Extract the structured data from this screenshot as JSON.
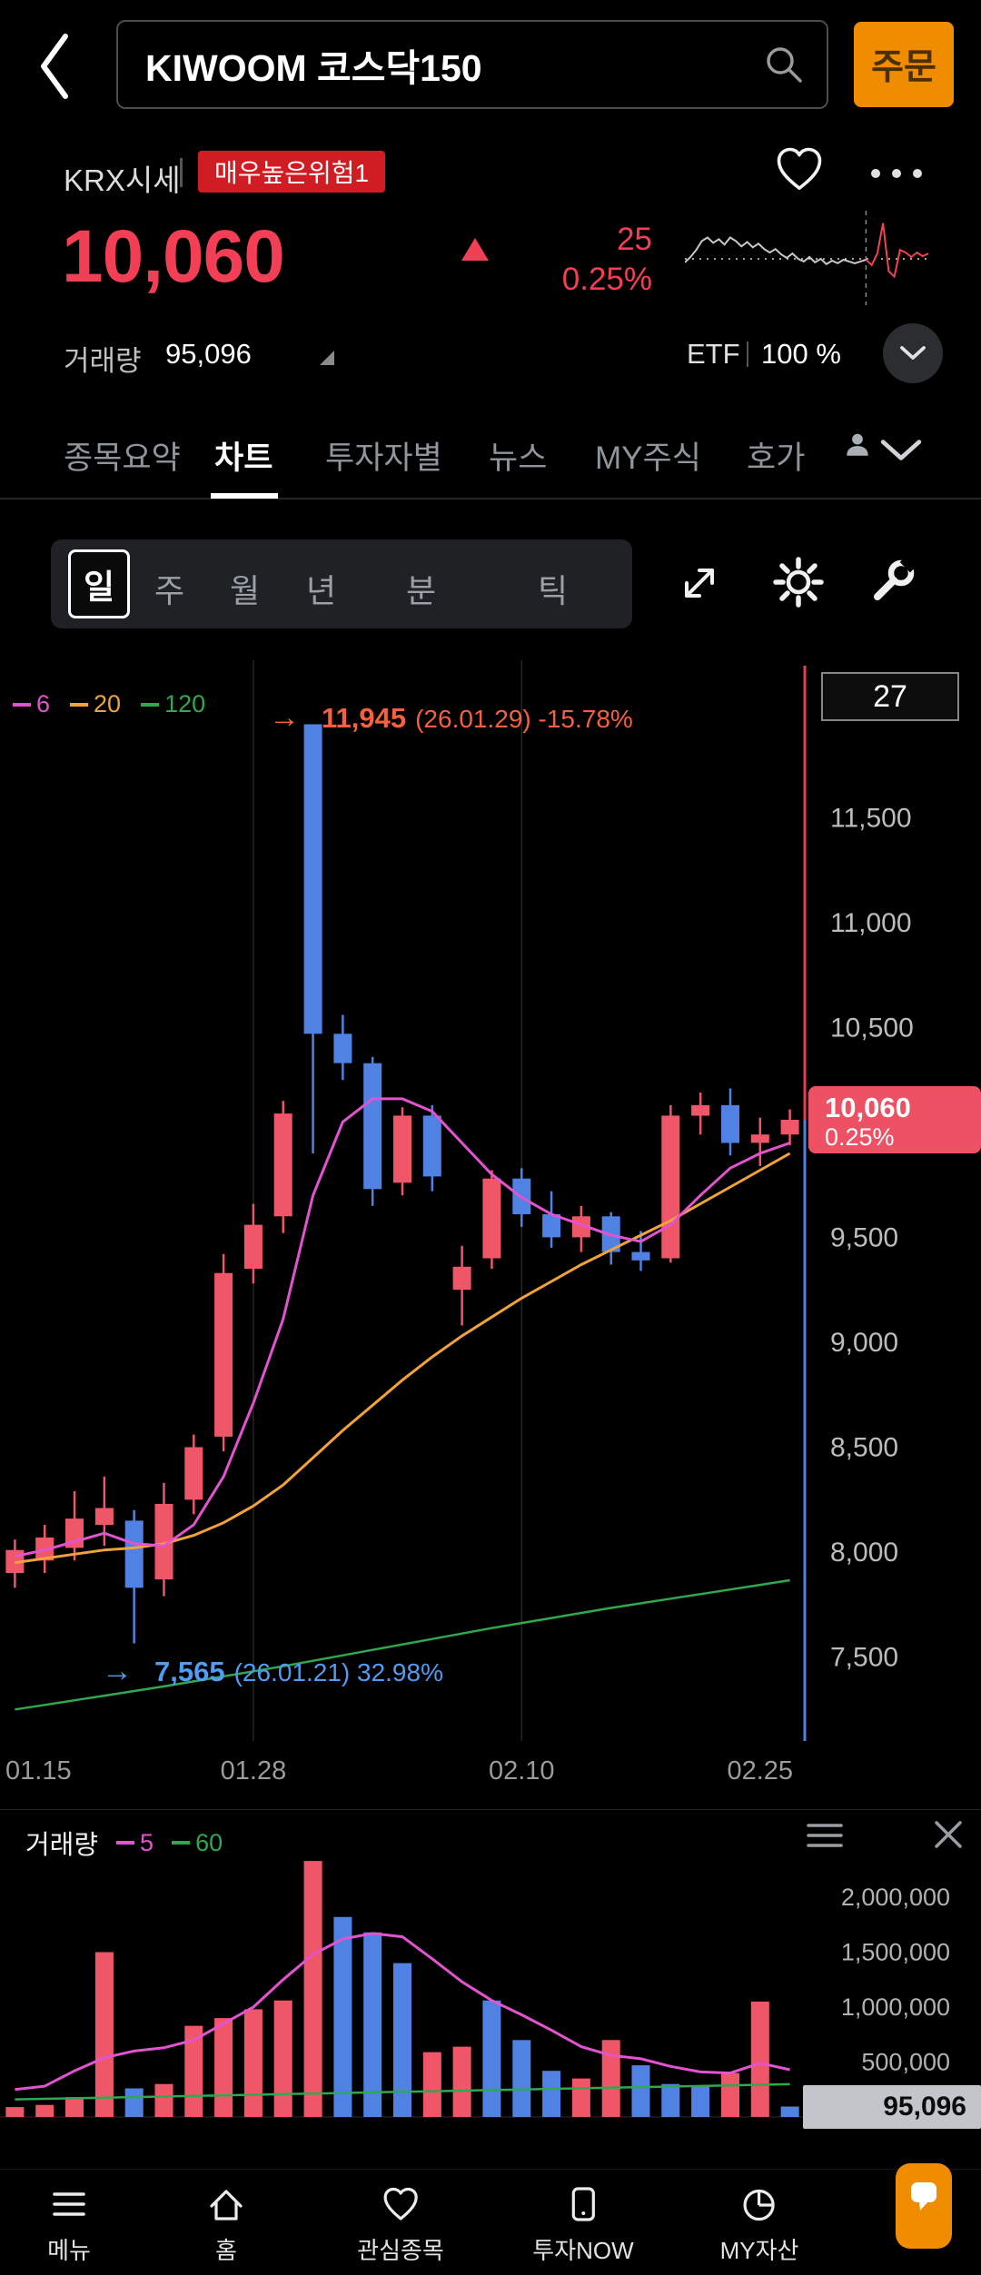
{
  "header": {
    "title": "KIWOOM 코스닥150",
    "order_button": "주문",
    "market_label": "KRX시세",
    "risk_badge": "매우높은위험1",
    "price": "10,060",
    "change": "25",
    "change_pct": "0.25%",
    "volume_label": "거래량",
    "volume_value": "95,096",
    "etf_label": "ETF",
    "etf_pct": "100 %"
  },
  "tabs": {
    "items": [
      {
        "label": "종목요약"
      },
      {
        "label": "차트"
      },
      {
        "label": "투자자별"
      },
      {
        "label": "뉴스"
      },
      {
        "label": "MY주식"
      },
      {
        "label": "호가"
      }
    ],
    "active": "차트"
  },
  "timeframe": {
    "selected": "일",
    "options": [
      "주",
      "월",
      "년",
      "분",
      "틱"
    ]
  },
  "legend": {
    "items": [
      {
        "label": "6"
      },
      {
        "label": "20"
      },
      {
        "label": "120"
      }
    ]
  },
  "chart_info": {
    "bar_count": "27"
  },
  "annotations": {
    "max": {
      "arrow": "→",
      "value": "11,945",
      "detail": "(26.01.29) -15.78%"
    },
    "min": {
      "arrow": "→",
      "value": "7,565",
      "detail": "(26.01.21) 32.98%"
    }
  },
  "price_tag": {
    "price": "10,060",
    "pct": "0.25%"
  },
  "volume_panel": {
    "title": "거래량",
    "ma_items": [
      {
        "label": "5"
      },
      {
        "label": "60"
      }
    ],
    "current": "95,096"
  },
  "bottom_nav": {
    "items": [
      {
        "label": "메뉴"
      },
      {
        "label": "홈"
      },
      {
        "label": "관심종목"
      },
      {
        "label": "투자NOW"
      },
      {
        "label": "MY자산"
      }
    ]
  },
  "chart_data": {
    "type": "candlestick",
    "current_price": 10060,
    "price_axis": {
      "min": 7100,
      "max": 12250,
      "ticks": [
        11500,
        11000,
        10500,
        9500,
        9000,
        8500,
        8000,
        7500
      ]
    },
    "x_labels": [
      {
        "label": "01.15",
        "index": 0,
        "grid": false
      },
      {
        "label": "01.28",
        "index": 8,
        "grid": true
      },
      {
        "label": "02.10",
        "index": 17,
        "grid": true
      },
      {
        "label": "02.25",
        "index": 25,
        "grid": false
      }
    ],
    "candles": [
      [
        7900,
        8060,
        7830,
        8010
      ],
      [
        7960,
        8130,
        7900,
        8070
      ],
      [
        8020,
        8290,
        7960,
        8160
      ],
      [
        8130,
        8360,
        8030,
        8210
      ],
      [
        8150,
        8200,
        7565,
        7830
      ],
      [
        7870,
        8330,
        7790,
        8230
      ],
      [
        8250,
        8560,
        8180,
        8500
      ],
      [
        8550,
        9420,
        8480,
        9330
      ],
      [
        9350,
        9660,
        9280,
        9560
      ],
      [
        9600,
        10150,
        9520,
        10090
      ],
      [
        11945,
        11945,
        9900,
        10470
      ],
      [
        10470,
        10560,
        10250,
        10330
      ],
      [
        10330,
        10360,
        9650,
        9730
      ],
      [
        9760,
        10120,
        9700,
        10080
      ],
      [
        10080,
        10130,
        9720,
        9790
      ],
      [
        9250,
        9460,
        9080,
        9360
      ],
      [
        9400,
        9820,
        9350,
        9780
      ],
      [
        9780,
        9830,
        9550,
        9610
      ],
      [
        9610,
        9720,
        9450,
        9500
      ],
      [
        9500,
        9650,
        9430,
        9600
      ],
      [
        9600,
        9620,
        9370,
        9430
      ],
      [
        9430,
        9530,
        9340,
        9390
      ],
      [
        9400,
        10130,
        9380,
        10080
      ],
      [
        10080,
        10190,
        9990,
        10130
      ],
      [
        10130,
        10210,
        9890,
        9950
      ],
      [
        9950,
        10070,
        9840,
        9990
      ],
      [
        9990,
        10110,
        9940,
        10060
      ]
    ],
    "ma": {
      "ma6": [
        7980,
        8010,
        8050,
        8090,
        8040,
        8030,
        8130,
        8360,
        8710,
        9110,
        9700,
        10050,
        10160,
        10160,
        10100,
        9950,
        9800,
        9690,
        9610,
        9560,
        9510,
        9480,
        9560,
        9700,
        9830,
        9900,
        9950
      ],
      "ma20": [
        7950,
        7970,
        7990,
        8010,
        8020,
        8040,
        8080,
        8140,
        8220,
        8320,
        8450,
        8580,
        8700,
        8820,
        8930,
        9030,
        9120,
        9210,
        9290,
        9370,
        9440,
        9510,
        9580,
        9660,
        9740,
        9820,
        9900
      ],
      "ma120": [
        7250,
        7272,
        7294,
        7316,
        7338,
        7360,
        7384,
        7408,
        7432,
        7456,
        7482,
        7508,
        7534,
        7560,
        7586,
        7612,
        7638,
        7662,
        7686,
        7710,
        7734,
        7756,
        7778,
        7800,
        7822,
        7844,
        7866
      ]
    },
    "volume": {
      "values": [
        90000,
        110000,
        180000,
        1500000,
        260000,
        300000,
        830000,
        900000,
        980000,
        1060000,
        2330000,
        1820000,
        1680000,
        1400000,
        590000,
        640000,
        1060000,
        700000,
        420000,
        350000,
        700000,
        470000,
        300000,
        280000,
        400000,
        1050000,
        95096
      ],
      "colors": [
        "up",
        "up",
        "up",
        "up",
        "down",
        "up",
        "up",
        "up",
        "up",
        "up",
        "up",
        "down",
        "down",
        "down",
        "up",
        "up",
        "down",
        "down",
        "down",
        "up",
        "up",
        "down",
        "down",
        "down",
        "up",
        "up",
        "down"
      ],
      "ma5": [
        250000,
        280000,
        420000,
        540000,
        600000,
        630000,
        700000,
        850000,
        1000000,
        1250000,
        1480000,
        1620000,
        1670000,
        1640000,
        1440000,
        1230000,
        1060000,
        930000,
        790000,
        640000,
        560000,
        530000,
        460000,
        410000,
        400000,
        490000,
        430000
      ],
      "ma60": [
        160000,
        165000,
        170000,
        176000,
        181000,
        186000,
        192000,
        197000,
        202000,
        208000,
        213000,
        218000,
        224000,
        229000,
        234000,
        240000,
        245000,
        250000,
        256000,
        261000,
        266000,
        272000,
        277000,
        282000,
        288000,
        293000,
        298000
      ],
      "ticks": [
        2000000,
        1500000,
        1000000,
        500000
      ],
      "current": 95096
    },
    "sparkline": {
      "values": [
        46,
        52,
        60,
        70,
        74,
        68,
        72,
        66,
        74,
        70,
        64,
        69,
        63,
        67,
        61,
        57,
        61,
        55,
        51,
        56,
        50,
        47,
        52,
        46,
        50,
        44,
        48,
        45,
        49,
        47,
        45,
        47,
        49,
        43,
        56,
        90,
        36,
        30,
        60,
        57,
        52,
        57,
        53,
        56
      ],
      "split_index": 32,
      "baseline": 50
    },
    "colors": {
      "up": "#ef5668",
      "down": "#4f82e3",
      "ma6": "#e254cf",
      "ma20": "#f2a23a",
      "ma120": "#2fa84f",
      "grid": "#262626",
      "edge_red": "#e83c50",
      "edge_blue": "#4f82e3",
      "axis_text": "#bcbcbc",
      "x_text": "#9c9c9c"
    }
  }
}
